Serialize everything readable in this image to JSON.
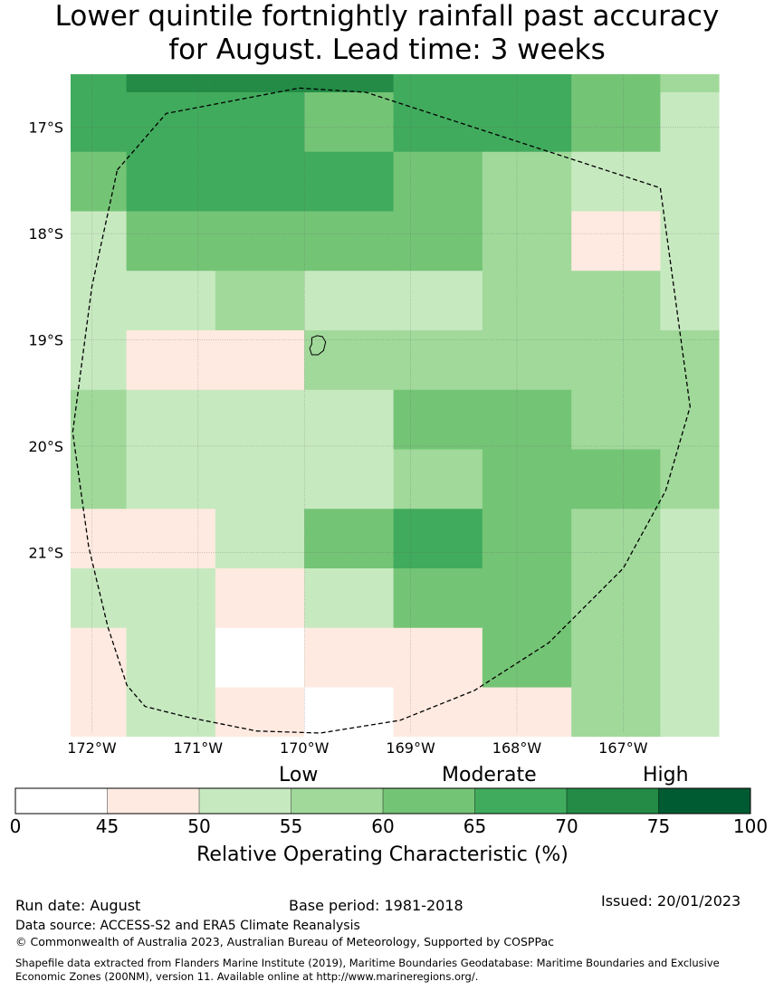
{
  "title_line1": "Lower quintile fortnightly rainfall past accuracy",
  "title_line2": "for August. Lead time: 3 weeks",
  "map": {
    "lon_range": [
      -172.2,
      -166.1
    ],
    "lat_range": [
      -22.7,
      -16.5
    ],
    "lat_tick_labels": [
      "17°S",
      "18°S",
      "19°S",
      "20°S",
      "21°S"
    ],
    "lat_tick_values": [
      -17,
      -18,
      -19,
      -20,
      -21
    ],
    "lon_tick_labels": [
      "172°W",
      "171°W",
      "170°W",
      "169°W",
      "168°W",
      "167°W"
    ],
    "lon_tick_values": [
      -172,
      -171,
      -170,
      -169,
      -168,
      -167
    ],
    "cell_col_edges": [
      -172.2,
      -171.675,
      -170.838,
      -170.0,
      -169.162,
      -168.325,
      -167.487,
      -166.65,
      -166.1
    ],
    "cell_row_edges": [
      -16.5,
      -16.67,
      -17.23,
      -17.79,
      -18.35,
      -18.91,
      -19.47,
      -20.03,
      -20.59,
      -21.15,
      -21.71,
      -22.27,
      -22.73
    ],
    "roc_grid": [
      [
        67,
        72,
        72,
        72,
        67,
        67,
        62,
        57
      ],
      [
        67,
        67,
        67,
        62,
        67,
        67,
        62,
        52
      ],
      [
        62,
        67,
        67,
        67,
        62,
        57,
        52,
        52
      ],
      [
        52,
        62,
        62,
        62,
        62,
        57,
        47,
        52
      ],
      [
        52,
        52,
        57,
        52,
        52,
        57,
        57,
        52
      ],
      [
        52,
        47,
        47,
        57,
        57,
        57,
        57,
        57
      ],
      [
        57,
        52,
        52,
        52,
        62,
        62,
        57,
        57
      ],
      [
        57,
        52,
        52,
        52,
        57,
        62,
        62,
        57
      ],
      [
        47,
        47,
        52,
        62,
        67,
        62,
        57,
        52
      ],
      [
        52,
        52,
        47,
        52,
        62,
        62,
        57,
        52
      ],
      [
        47,
        52,
        40,
        47,
        47,
        62,
        57,
        52
      ],
      [
        47,
        52,
        47,
        40,
        47,
        47,
        57,
        52
      ]
    ],
    "eez_boundary": [
      [
        -171.76,
        -17.4
      ],
      [
        -171.3,
        -16.87
      ],
      [
        -170.05,
        -16.63
      ],
      [
        -169.42,
        -16.67
      ],
      [
        -166.65,
        -17.57
      ],
      [
        -166.37,
        -19.63
      ],
      [
        -166.6,
        -20.42
      ],
      [
        -167.0,
        -21.15
      ],
      [
        -167.7,
        -21.85
      ],
      [
        -168.4,
        -22.3
      ],
      [
        -169.1,
        -22.58
      ],
      [
        -169.85,
        -22.7
      ],
      [
        -170.45,
        -22.68
      ],
      [
        -171.1,
        -22.55
      ],
      [
        -171.5,
        -22.45
      ],
      [
        -171.67,
        -22.25
      ],
      [
        -171.85,
        -21.7
      ],
      [
        -172.03,
        -20.95
      ],
      [
        -172.18,
        -19.87
      ],
      [
        -172.0,
        -18.5
      ]
    ],
    "island_outline": [
      [
        -169.93,
        -18.98
      ],
      [
        -169.88,
        -18.96
      ],
      [
        -169.83,
        -18.97
      ],
      [
        -169.8,
        -19.02
      ],
      [
        -169.82,
        -19.1
      ],
      [
        -169.87,
        -19.14
      ],
      [
        -169.93,
        -19.14
      ],
      [
        -169.95,
        -19.08
      ],
      [
        -169.93,
        -19.04
      ]
    ]
  },
  "colorbar": {
    "category_labels": [
      "Low",
      "Moderate",
      "High"
    ],
    "tick_labels": [
      "0",
      "45",
      "50",
      "55",
      "60",
      "65",
      "70",
      "75",
      "100"
    ],
    "colors": [
      "#ffffff",
      "#feeae0",
      "#c7e9c0",
      "#a1d99b",
      "#74c476",
      "#41ab5d",
      "#238b45",
      "#005a32"
    ],
    "title": "Relative Operating Characteristic (%)"
  },
  "footer": {
    "run_date": "Run date: August",
    "base_period": "Base period: 1981-2018",
    "issued": "Issued: 20/01/2023",
    "data_source": "Data source: ACCESS-S2 and ERA5 Climate Reanalysis",
    "copyright": "© Commonwealth of Australia 2023, Australian Bureau of Meteorology, Supported by COSPPac",
    "shapefile_line1": "Shapefile data extracted from Flanders Marine Institute (2019), Maritime Boundaries Geodatabase: Maritime Boundaries and Exclusive",
    "shapefile_line2": "Economic Zones (200NM), version 11. Available online at http://www.marineregions.org/."
  }
}
